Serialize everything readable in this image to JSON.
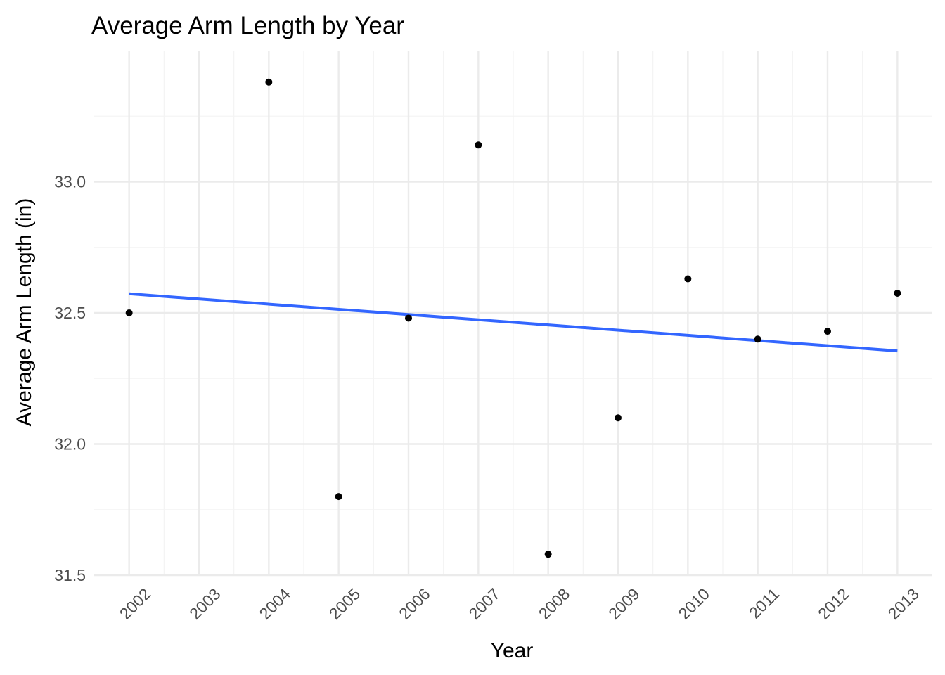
{
  "chart_data": {
    "type": "scatter",
    "title": "Average Arm Length by Year",
    "xlabel": "Year",
    "ylabel": "Average Arm Length (in)",
    "x": [
      2002,
      2003,
      2004,
      2005,
      2006,
      2007,
      2008,
      2009,
      2010,
      2011,
      2012,
      2013
    ],
    "points": [
      {
        "x": 2002,
        "y": 32.5
      },
      {
        "x": 2004,
        "y": 33.38
      },
      {
        "x": 2005,
        "y": 31.8
      },
      {
        "x": 2006,
        "y": 32.48
      },
      {
        "x": 2007,
        "y": 33.14
      },
      {
        "x": 2008,
        "y": 31.58
      },
      {
        "x": 2009,
        "y": 32.1
      },
      {
        "x": 2010,
        "y": 32.63
      },
      {
        "x": 2011,
        "y": 32.4
      },
      {
        "x": 2012,
        "y": 32.43
      },
      {
        "x": 2013,
        "y": 32.575
      }
    ],
    "trend_line": {
      "method": "linear",
      "color": "#3366FF",
      "start": {
        "x": 2002,
        "y": 32.573
      },
      "end": {
        "x": 2013,
        "y": 32.355
      }
    },
    "point_color": "#000000",
    "xlim": [
      2001.5,
      2013.5
    ],
    "ylim": [
      31.5,
      33.5
    ],
    "x_ticks": [
      "2002",
      "2003",
      "2004",
      "2005",
      "2006",
      "2007",
      "2008",
      "2009",
      "2010",
      "2011",
      "2012",
      "2013"
    ],
    "y_ticks": [
      "31.5",
      "32.0",
      "32.5",
      "33.0"
    ],
    "grid": true,
    "grid_color": "#EBEBEB",
    "theme": "minimal",
    "legend": "none"
  }
}
